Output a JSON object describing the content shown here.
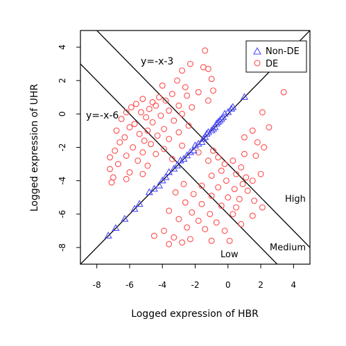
{
  "chart_data": {
    "type": "scatter",
    "xlabel": "Logged expression of HBR",
    "ylabel": "Logged expression of UHR",
    "xlim": [
      -9,
      5
    ],
    "ylim": [
      -9,
      5
    ],
    "xticks": [
      "-8",
      "-6",
      "-4",
      "-2",
      "0",
      "2",
      "4"
    ],
    "yticks": [
      "-8",
      "-6",
      "-4",
      "-2",
      "0",
      "2",
      "4"
    ],
    "grid": false,
    "legend_position": "top-right",
    "series": [
      {
        "name": "Non-DE",
        "marker": "triangle",
        "color": "#4a4aff",
        "points": [
          [
            -7.3,
            -7.3
          ],
          [
            -6.85,
            -6.85
          ],
          [
            -6.3,
            -6.3
          ],
          [
            -5.7,
            -5.7
          ],
          [
            -5.4,
            -5.4
          ],
          [
            -4.8,
            -4.7
          ],
          [
            -4.5,
            -4.5
          ],
          [
            -4.2,
            -4.3
          ],
          [
            -4.0,
            -4.0
          ],
          [
            -3.8,
            -3.8
          ],
          [
            -3.6,
            -3.5
          ],
          [
            -3.3,
            -3.3
          ],
          [
            -3.1,
            -3.1
          ],
          [
            -2.9,
            -2.8
          ],
          [
            -2.7,
            -2.7
          ],
          [
            -2.5,
            -2.5
          ],
          [
            -2.3,
            -2.3
          ],
          [
            -2.1,
            -2.2
          ],
          [
            -2.0,
            -1.9
          ],
          [
            -1.8,
            -1.8
          ],
          [
            -1.6,
            -1.7
          ],
          [
            -1.5,
            -1.5
          ],
          [
            -1.4,
            -1.4
          ],
          [
            -1.3,
            -1.2
          ],
          [
            -1.2,
            -1.1
          ],
          [
            -1.0,
            -1.0
          ],
          [
            -0.9,
            -0.9
          ],
          [
            -0.8,
            -0.8
          ],
          [
            -0.7,
            -0.6
          ],
          [
            -0.6,
            -0.5
          ],
          [
            -0.5,
            -0.4
          ],
          [
            -0.4,
            -0.3
          ],
          [
            -0.3,
            -0.2
          ],
          [
            -0.2,
            0.0
          ],
          [
            0.0,
            0.1
          ],
          [
            0.2,
            0.3
          ],
          [
            0.3,
            0.4
          ],
          [
            1.0,
            1.0
          ]
        ]
      },
      {
        "name": "DE",
        "marker": "circle",
        "color": "#ff4a4a",
        "points": [
          [
            -1.4,
            3.8
          ],
          [
            -2.3,
            3.0
          ],
          [
            -1.5,
            2.8
          ],
          [
            -1.2,
            2.7
          ],
          [
            -2.8,
            2.6
          ],
          [
            -1.0,
            2.1
          ],
          [
            -3.1,
            2.0
          ],
          [
            -4.0,
            1.7
          ],
          [
            -2.6,
            1.6
          ],
          [
            -0.9,
            1.4
          ],
          [
            -1.8,
            1.3
          ],
          [
            -3.4,
            1.2
          ],
          [
            -2.5,
            1.1
          ],
          [
            -4.2,
            1.0
          ],
          [
            -5.2,
            0.9
          ],
          [
            -3.8,
            0.8
          ],
          [
            -1.2,
            0.8
          ],
          [
            -4.6,
            0.7
          ],
          [
            -5.6,
            0.6
          ],
          [
            -3.0,
            0.5
          ],
          [
            -4.4,
            0.5
          ],
          [
            -5.9,
            0.4
          ],
          [
            -2.2,
            0.4
          ],
          [
            -4.8,
            0.3
          ],
          [
            -3.6,
            0.2
          ],
          [
            -5.3,
            0.1
          ],
          [
            -6.2,
            0.1
          ],
          [
            -2.8,
            0.0
          ],
          [
            -4.1,
            -0.1
          ],
          [
            -5.0,
            -0.2
          ],
          [
            -6.5,
            -0.3
          ],
          [
            -3.3,
            -0.4
          ],
          [
            -4.6,
            -0.5
          ],
          [
            -5.7,
            -0.6
          ],
          [
            -2.4,
            -0.7
          ],
          [
            -6.0,
            -0.8
          ],
          [
            -3.9,
            -0.9
          ],
          [
            -4.9,
            -1.0
          ],
          [
            -6.8,
            -1.0
          ],
          [
            -3.0,
            -1.1
          ],
          [
            -5.4,
            -1.2
          ],
          [
            -4.3,
            -1.3
          ],
          [
            -6.3,
            -1.4
          ],
          [
            -3.6,
            -1.5
          ],
          [
            -5.1,
            -1.6
          ],
          [
            -6.6,
            -1.7
          ],
          [
            -4.7,
            -1.8
          ],
          [
            -2.8,
            -1.9
          ],
          [
            -5.8,
            -2.0
          ],
          [
            -3.9,
            -2.1
          ],
          [
            -6.9,
            -2.2
          ],
          [
            -5.2,
            -2.3
          ],
          [
            -4.4,
            -2.4
          ],
          [
            -6.2,
            -2.5
          ],
          [
            -7.2,
            -2.6
          ],
          [
            -3.4,
            -2.7
          ],
          [
            -5.5,
            -2.8
          ],
          [
            -6.7,
            -3.0
          ],
          [
            -4.9,
            -3.1
          ],
          [
            -7.2,
            -3.3
          ],
          [
            -6.0,
            -3.5
          ],
          [
            -5.2,
            -3.6
          ],
          [
            -7.0,
            -3.8
          ],
          [
            -6.2,
            -3.9
          ],
          [
            -7.1,
            -4.1
          ],
          [
            -1.8,
            -2.3
          ],
          [
            -0.9,
            -2.2
          ],
          [
            -0.6,
            -2.6
          ],
          [
            -1.2,
            -2.8
          ],
          [
            -0.2,
            -3.0
          ],
          [
            0.3,
            -2.8
          ],
          [
            1.0,
            -2.4
          ],
          [
            1.7,
            -2.5
          ],
          [
            0.8,
            -3.2
          ],
          [
            -0.4,
            -3.4
          ],
          [
            0.5,
            -3.6
          ],
          [
            1.1,
            -3.8
          ],
          [
            -1.0,
            -3.7
          ],
          [
            -0.1,
            -4.0
          ],
          [
            0.9,
            -4.2
          ],
          [
            1.5,
            -4.0
          ],
          [
            2.0,
            -3.6
          ],
          [
            -2.7,
            -4.2
          ],
          [
            -1.6,
            -4.3
          ],
          [
            -0.6,
            -4.4
          ],
          [
            0.4,
            -4.5
          ],
          [
            1.2,
            -4.6
          ],
          [
            -3.2,
            -4.7
          ],
          [
            -2.1,
            -4.8
          ],
          [
            -1.0,
            -4.9
          ],
          [
            0.0,
            -5.0
          ],
          [
            0.7,
            -5.1
          ],
          [
            1.6,
            -5.2
          ],
          [
            -2.6,
            -5.3
          ],
          [
            -1.6,
            -5.4
          ],
          [
            -0.4,
            -5.5
          ],
          [
            0.5,
            -5.6
          ],
          [
            2.1,
            -5.6
          ],
          [
            -3.6,
            -5.8
          ],
          [
            -2.2,
            -5.9
          ],
          [
            -1.1,
            -6.0
          ],
          [
            0.3,
            -6.0
          ],
          [
            1.5,
            -6.1
          ],
          [
            -3.0,
            -6.3
          ],
          [
            -1.8,
            -6.4
          ],
          [
            -0.7,
            -6.5
          ],
          [
            0.8,
            -6.6
          ],
          [
            -2.5,
            -6.8
          ],
          [
            -1.4,
            -6.9
          ],
          [
            -3.9,
            -7.0
          ],
          [
            -0.2,
            -7.0
          ],
          [
            -4.5,
            -7.3
          ],
          [
            -3.3,
            -7.4
          ],
          [
            -2.3,
            -7.5
          ],
          [
            -1.0,
            -7.6
          ],
          [
            -3.6,
            -7.8
          ],
          [
            0.1,
            -7.6
          ],
          [
            -2.8,
            -7.7
          ],
          [
            2.1,
            0.1
          ],
          [
            3.4,
            1.3
          ],
          [
            1.8,
            -1.7
          ],
          [
            2.5,
            -0.8
          ],
          [
            1.5,
            -1.0
          ],
          [
            2.2,
            -2.0
          ],
          [
            1.0,
            -1.4
          ]
        ]
      }
    ],
    "lines": [
      {
        "label": "y=-x-3",
        "slope": -1,
        "intercept": -3
      },
      {
        "label": "y=-x-6",
        "slope": -1,
        "intercept": -6
      },
      {
        "label": "",
        "slope": 1,
        "intercept": 0
      }
    ],
    "annotations": [
      "High",
      "Medium",
      "Low"
    ]
  }
}
